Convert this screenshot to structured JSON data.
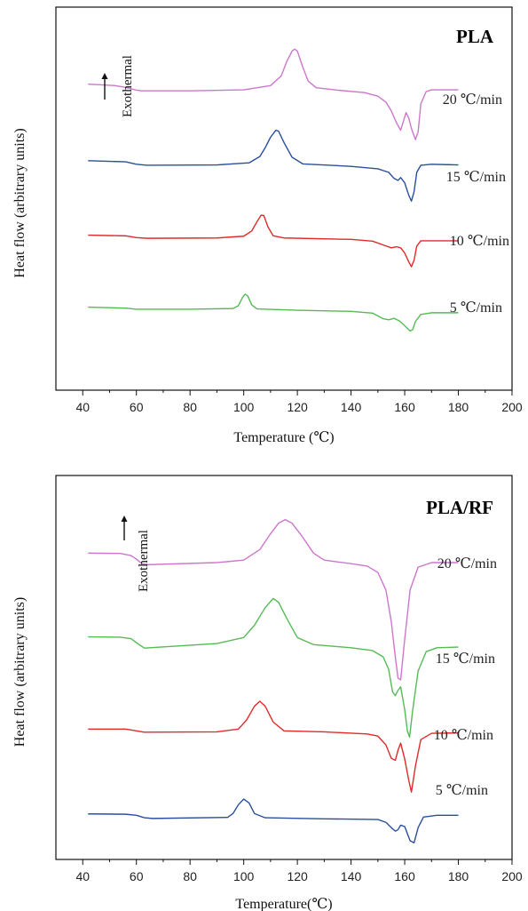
{
  "chart_data": [
    {
      "type": "line",
      "panel_label": "PLA",
      "exo_label": "Exothermal",
      "xlabel": "Temperature (℃)",
      "ylabel": "Heat flow (arbitrary units)",
      "xlim": [
        30,
        200
      ],
      "x_ticks": [
        40,
        60,
        80,
        100,
        120,
        140,
        160,
        180,
        200
      ],
      "ylim": [
        0,
        100
      ],
      "y_ticks_shown": false,
      "grid": false,
      "series": [
        {
          "label": "20 ℃/min",
          "color": "#cc77cc",
          "baseline_start": 82.0,
          "baseline_end": 81.0,
          "points": [
            [
              42,
              82.6
            ],
            [
              52,
              82.2
            ],
            [
              56,
              81.7
            ],
            [
              58,
              81.3
            ],
            [
              60,
              80.9
            ],
            [
              62,
              80.7
            ],
            [
              80,
              80.7
            ],
            [
              100,
              81.0
            ],
            [
              110,
              82.2
            ],
            [
              114,
              85.0
            ],
            [
              116,
              89.0
            ],
            [
              118,
              92.0
            ],
            [
              119,
              92.6
            ],
            [
              120,
              92.0
            ],
            [
              122,
              87.5
            ],
            [
              124,
              83.5
            ],
            [
              127,
              81.6
            ],
            [
              135,
              80.9
            ],
            [
              145,
              80.2
            ],
            [
              150,
              79.2
            ],
            [
              153,
              77.5
            ],
            [
              155,
              75.0
            ],
            [
              157,
              71.5
            ],
            [
              158.5,
              69.5
            ],
            [
              159.5,
              72.0
            ],
            [
              160.5,
              74.5
            ],
            [
              161.5,
              73.0
            ],
            [
              162.5,
              70.0
            ],
            [
              164,
              66.8
            ],
            [
              165,
              69.0
            ],
            [
              166,
              77.0
            ],
            [
              168,
              80.5
            ],
            [
              170,
              81.0
            ],
            [
              180,
              81.0
            ]
          ]
        },
        {
          "label": "15 ℃/min",
          "color": "#2a4f9b",
          "baseline_start": 60.8,
          "baseline_end": 59.6,
          "points": [
            [
              42,
              60.8
            ],
            [
              56,
              60.5
            ],
            [
              60,
              59.8
            ],
            [
              64,
              59.5
            ],
            [
              90,
              59.6
            ],
            [
              102,
              60.2
            ],
            [
              106,
              62.0
            ],
            [
              108,
              64.5
            ],
            [
              110,
              67.5
            ],
            [
              112,
              69.5
            ],
            [
              113,
              69.2
            ],
            [
              115,
              66.0
            ],
            [
              118,
              61.8
            ],
            [
              122,
              59.9
            ],
            [
              140,
              59.2
            ],
            [
              150,
              58.5
            ],
            [
              154,
              57.5
            ],
            [
              156,
              55.8
            ],
            [
              157.5,
              55.2
            ],
            [
              158.5,
              56.0
            ],
            [
              160,
              54.5
            ],
            [
              161.5,
              51.0
            ],
            [
              162.5,
              49.3
            ],
            [
              163.5,
              52.0
            ],
            [
              164.5,
              57.5
            ],
            [
              166,
              59.5
            ],
            [
              170,
              59.8
            ],
            [
              180,
              59.6
            ]
          ]
        },
        {
          "label": "10 ℃/min",
          "color": "#e02a2a",
          "baseline_start": 39.6,
          "baseline_end": 38.0,
          "points": [
            [
              42,
              39.6
            ],
            [
              56,
              39.4
            ],
            [
              60,
              38.9
            ],
            [
              64,
              38.7
            ],
            [
              90,
              38.8
            ],
            [
              100,
              39.3
            ],
            [
              103,
              40.8
            ],
            [
              105,
              43.5
            ],
            [
              106.5,
              45.3
            ],
            [
              107.5,
              45.2
            ],
            [
              109,
              42.0
            ],
            [
              111,
              39.4
            ],
            [
              115,
              38.8
            ],
            [
              140,
              38.4
            ],
            [
              148,
              37.9
            ],
            [
              152,
              36.8
            ],
            [
              155,
              36.0
            ],
            [
              157,
              36.3
            ],
            [
              158.5,
              36.0
            ],
            [
              160,
              34.5
            ],
            [
              161.5,
              32.0
            ],
            [
              162.5,
              30.6
            ],
            [
              163.5,
              32.5
            ],
            [
              164.5,
              36.5
            ],
            [
              166,
              38.0
            ],
            [
              180,
              38.0
            ]
          ]
        },
        {
          "label": "5 ℃/min",
          "color": "#55bb55",
          "baseline_start": 19.1,
          "baseline_end": 17.5,
          "points": [
            [
              42,
              19.1
            ],
            [
              56,
              18.8
            ],
            [
              60,
              18.5
            ],
            [
              80,
              18.5
            ],
            [
              96,
              18.7
            ],
            [
              98,
              19.5
            ],
            [
              99.5,
              21.8
            ],
            [
              100.5,
              22.8
            ],
            [
              101.5,
              22.3
            ],
            [
              103,
              19.7
            ],
            [
              105,
              18.6
            ],
            [
              120,
              18.2
            ],
            [
              140,
              17.9
            ],
            [
              148,
              17.4
            ],
            [
              152,
              15.8
            ],
            [
              154,
              15.5
            ],
            [
              156,
              15.9
            ],
            [
              158,
              15.2
            ],
            [
              160,
              13.8
            ],
            [
              162,
              12.3
            ],
            [
              163,
              12.7
            ],
            [
              164,
              15.0
            ],
            [
              166,
              17.0
            ],
            [
              170,
              17.5
            ],
            [
              180,
              17.5
            ]
          ]
        }
      ]
    },
    {
      "type": "line",
      "panel_label": "PLA/RF",
      "exo_label": "Exothermal",
      "xlabel": "Temperature(℃)",
      "ylabel": "Heat flow (arbitrary units)",
      "xlim": [
        30,
        200
      ],
      "x_ticks": [
        40,
        60,
        80,
        100,
        120,
        140,
        160,
        180,
        200
      ],
      "ylim": [
        0,
        100
      ],
      "y_ticks_shown": false,
      "grid": false,
      "series": [
        {
          "label": "20 ℃/min",
          "color": "#cc77cc",
          "points": [
            [
              42,
              82.5
            ],
            [
              54,
              82.4
            ],
            [
              58,
              81.8
            ],
            [
              60,
              80.8
            ],
            [
              62,
              79.5
            ],
            [
              64,
              79.2
            ],
            [
              90,
              79.8
            ],
            [
              100,
              80.5
            ],
            [
              106,
              83.5
            ],
            [
              110,
              88.0
            ],
            [
              113,
              91.0
            ],
            [
              115.5,
              92.0
            ],
            [
              118,
              91.0
            ],
            [
              122,
              87.0
            ],
            [
              126,
              82.5
            ],
            [
              130,
              80.5
            ],
            [
              140,
              79.5
            ],
            [
              146,
              78.8
            ],
            [
              150,
              77.0
            ],
            [
              153,
              72.0
            ],
            [
              155,
              63.0
            ],
            [
              156.5,
              53.0
            ],
            [
              157.5,
              47.0
            ],
            [
              158.5,
              46.5
            ],
            [
              160,
              58.0
            ],
            [
              162,
              72.0
            ],
            [
              165,
              78.5
            ],
            [
              170,
              79.8
            ],
            [
              180,
              79.8
            ]
          ]
        },
        {
          "label": "15 ℃/min",
          "color": "#55bb55",
          "points": [
            [
              42,
              58.7
            ],
            [
              54,
              58.6
            ],
            [
              58,
              58.2
            ],
            [
              61,
              56.5
            ],
            [
              63,
              55.5
            ],
            [
              65,
              55.6
            ],
            [
              90,
              56.8
            ],
            [
              100,
              58.5
            ],
            [
              104,
              62.0
            ],
            [
              108,
              67.0
            ],
            [
              111,
              69.6
            ],
            [
              113,
              68.5
            ],
            [
              116,
              64.0
            ],
            [
              120,
              58.5
            ],
            [
              126,
              56.5
            ],
            [
              140,
              55.6
            ],
            [
              148,
              54.8
            ],
            [
              152,
              53.0
            ],
            [
              154,
              49.5
            ],
            [
              155.5,
              43.0
            ],
            [
              156.5,
              42.0
            ],
            [
              157.5,
              43.5
            ],
            [
              158.5,
              44.5
            ],
            [
              160,
              38.0
            ],
            [
              161,
              32.0
            ],
            [
              161.8,
              30.2
            ],
            [
              163,
              38.0
            ],
            [
              165,
              49.0
            ],
            [
              168,
              54.5
            ],
            [
              172,
              55.6
            ],
            [
              180,
              55.8
            ]
          ]
        },
        {
          "label": "10 ℃/min",
          "color": "#e02a2a",
          "points": [
            [
              42,
              32.5
            ],
            [
              56,
              32.5
            ],
            [
              60,
              32.0
            ],
            [
              63,
              31.6
            ],
            [
              90,
              31.7
            ],
            [
              98,
              32.5
            ],
            [
              101,
              35.0
            ],
            [
              104,
              39.0
            ],
            [
              106,
              40.4
            ],
            [
              108,
              39.0
            ],
            [
              111,
              34.5
            ],
            [
              115,
              32.0
            ],
            [
              130,
              31.7
            ],
            [
              146,
              31.1
            ],
            [
              150,
              30.5
            ],
            [
              153,
              28.0
            ],
            [
              155,
              24.2
            ],
            [
              156.5,
              23.6
            ],
            [
              157.5,
              26.5
            ],
            [
              158.5,
              28.5
            ],
            [
              160,
              24.0
            ],
            [
              161.5,
              18.0
            ],
            [
              162.5,
              14.6
            ],
            [
              164,
              22.0
            ],
            [
              166,
              29.5
            ],
            [
              170,
              31.3
            ],
            [
              180,
              31.4
            ]
          ]
        },
        {
          "label": "5 ℃/min",
          "color": "#2a4f9b",
          "points": [
            [
              42,
              8.4
            ],
            [
              56,
              8.3
            ],
            [
              60,
              8.0
            ],
            [
              63,
              7.3
            ],
            [
              66,
              7.1
            ],
            [
              94,
              7.4
            ],
            [
              96,
              8.5
            ],
            [
              98,
              11.0
            ],
            [
              100,
              12.6
            ],
            [
              102,
              11.5
            ],
            [
              104,
              8.5
            ],
            [
              108,
              7.3
            ],
            [
              130,
              7.0
            ],
            [
              150,
              6.8
            ],
            [
              153,
              6.0
            ],
            [
              155,
              4.5
            ],
            [
              156.5,
              3.5
            ],
            [
              157.5,
              3.9
            ],
            [
              158.5,
              5.2
            ],
            [
              160,
              4.8
            ],
            [
              162,
              0.8
            ],
            [
              163.5,
              0.2
            ],
            [
              165,
              4.5
            ],
            [
              167,
              7.5
            ],
            [
              172,
              8.0
            ],
            [
              180,
              8.0
            ]
          ]
        }
      ]
    }
  ]
}
